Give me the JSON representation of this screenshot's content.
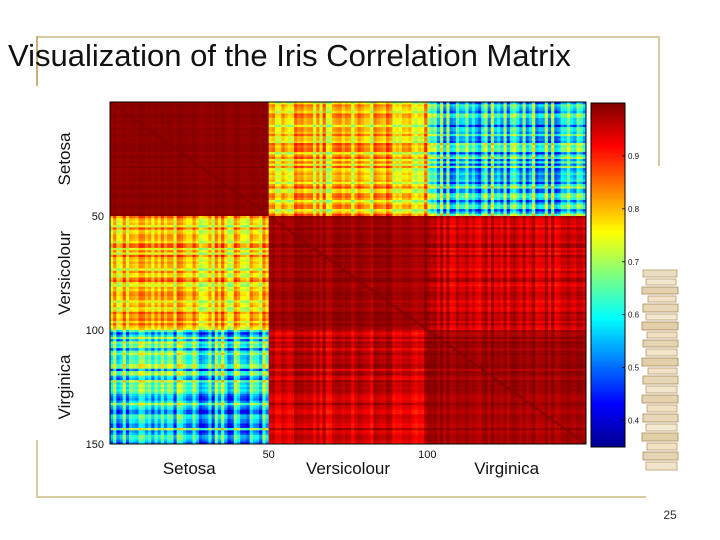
{
  "slide": {
    "title": "Visualization of the Iris Correlation Matrix",
    "page_number": "25"
  },
  "chart_data": {
    "type": "heatmap",
    "title": "Visualization of the Iris Correlation Matrix",
    "n": 150,
    "groups": [
      "Setosa",
      "Versicolour",
      "Virginica"
    ],
    "group_size": 50,
    "x_tick_labels": [
      "50",
      "100"
    ],
    "y_tick_labels": [
      "50",
      "100",
      "150"
    ],
    "block_mean_correlation": [
      [
        0.99,
        0.78,
        0.6
      ],
      [
        0.78,
        0.98,
        0.95
      ],
      [
        0.6,
        0.95,
        0.98
      ]
    ],
    "colorbar": {
      "colormap": "jet",
      "range": [
        0.35,
        1.0
      ],
      "ticks": [
        0.4,
        0.5,
        0.6,
        0.7,
        0.8,
        0.9
      ],
      "tick_labels": [
        "0.4",
        "0.5",
        "0.6",
        "0.7",
        "0.8",
        "0.9"
      ]
    }
  }
}
